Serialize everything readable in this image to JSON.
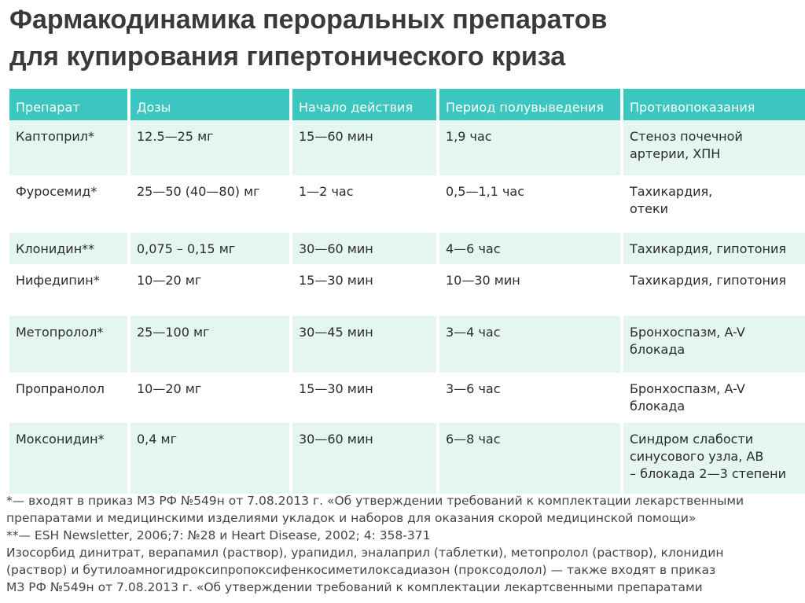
{
  "title": {
    "line1": "Фармакодинамика пероральных препаратов",
    "line2": "для купирования гипертонического криза"
  },
  "table": {
    "headers": [
      "Препарат",
      "Дозы",
      "Начало действия",
      "Период полувыведения",
      "Противопоказания"
    ],
    "rows": [
      {
        "drug": "Каптоприл*",
        "dose": "12.5—25 мг",
        "onset": "15—60 мин",
        "half_life": "1,9 час",
        "contra": [
          "Стеноз почечной",
          "артерии, ХПН"
        ]
      },
      {
        "drug": "Фуросемид*",
        "dose": "25—50 (40—80) мг",
        "onset": "1—2 час",
        "half_life": "0,5—1,1 час",
        "contra": [
          "Тахикардия,",
          "отеки"
        ]
      },
      {
        "drug": "Клонидин**",
        "dose": "0,075 – 0,15 мг",
        "onset": "30—60 мин",
        "half_life": "4—6 час",
        "contra": [
          "Тахикардия, гипотония"
        ]
      },
      {
        "drug": "Нифедипин*",
        "dose": "10—20 мг",
        "onset": "15—30 мин",
        "half_life": "10—30 мин",
        "contra": [
          "Тахикардия, гипотония"
        ]
      },
      {
        "drug": "Метопролол*",
        "dose": "25—100 мг",
        "onset": "30—45 мин",
        "half_life": "3—4 час",
        "contra": [
          "Бронхоспазм, A-V",
          "блокада"
        ]
      },
      {
        "drug": "Пропранолол",
        "dose": "10—20 мг",
        "onset": "15—30 мин",
        "half_life": "3—6 час",
        "contra": [
          "Бронхоспазм, A-V",
          "блокада"
        ]
      },
      {
        "drug": "Моксонидин*",
        "dose": "0,4 мг",
        "onset": "30—60 мин",
        "half_life": "6—8 час",
        "contra": [
          "Синдром слабости",
          "синусового узла, АВ",
          "– блокада 2—3 степени"
        ]
      }
    ]
  },
  "footnotes": [
    "*— входят в приказ МЗ РФ №549н от 7.08.2013 г. «Об утверждении требований к комплектации лекарственными",
    "препаратами и медицинскими изделиями укладок и наборов для оказания скорой медицинской помощи»",
    "**— ESH Newsletter, 2006;7: №28 и Heart Disease, 2002; 4: 358-371",
    "Изосорбид динитрат, верапамил (раствор), урапидил, эналаприл (таблетки), метопролол (раствор), клонидин",
    "(раствор) и бутилоамногидроксипропоксифенкосиметилоксадиазон (проксодолол) — также входят в приказ",
    "МЗ РФ №549н от 7.08.2013 г. «Об утверждении требований к комплектации лекартсвенными препаратами"
  ],
  "colors": {
    "header_bg": "#3bc6c0",
    "shaded_row": "#e4f5f2"
  }
}
